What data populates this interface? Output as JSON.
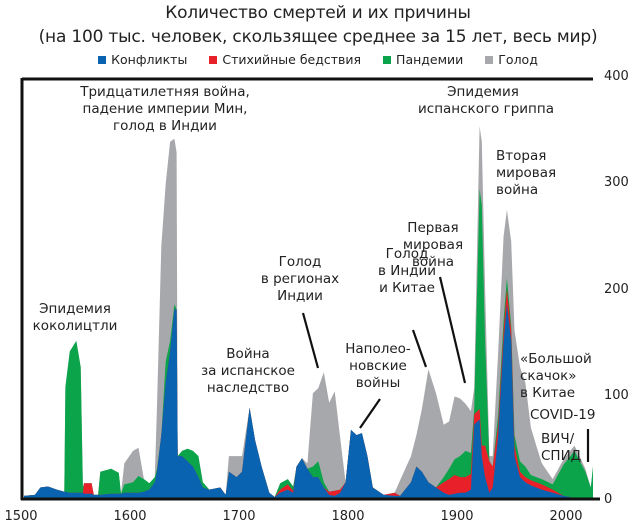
{
  "chart_data": {
    "type": "area",
    "stacked": true,
    "title": "Количество смертей и их причины",
    "subtitle": "(на 100 тыс. человек, скользящее среднее за 15 лет, весь мир)",
    "xlabel": "",
    "ylabel": "",
    "xlim": [
      1500,
      2022
    ],
    "ylim": [
      0,
      400
    ],
    "x_ticks": [
      "1500",
      "1600",
      "1700",
      "1800",
      "1900",
      "2000"
    ],
    "y_ticks": [
      "0",
      "100",
      "200",
      "300",
      "400"
    ],
    "y_axis_side": "right",
    "legend_position": "top",
    "series": [
      {
        "name": "Конфликты",
        "color": "#0a63b0"
      },
      {
        "name": "Стихийные бедствия",
        "color": "#e8202a"
      },
      {
        "name": "Пандемии",
        "color": "#0ba44a"
      },
      {
        "name": "Голод",
        "color": "#a7a8ab"
      }
    ],
    "points_columns": [
      "year",
      "Конфликты",
      "Стихийные бедствия",
      "Пандемии",
      "Голод"
    ],
    "points": [
      [
        1500,
        2,
        0,
        0,
        0
      ],
      [
        1510,
        3,
        0,
        0,
        0
      ],
      [
        1515,
        10,
        0,
        0,
        0
      ],
      [
        1522,
        11,
        0,
        0,
        0
      ],
      [
        1530,
        8,
        0,
        0,
        0
      ],
      [
        1537,
        6,
        0,
        0,
        0
      ],
      [
        1538,
        6,
        0,
        100,
        0
      ],
      [
        1542,
        5,
        0,
        135,
        0
      ],
      [
        1548,
        5,
        0,
        145,
        0
      ],
      [
        1552,
        5,
        0,
        120,
        0
      ],
      [
        1554,
        5,
        0,
        5,
        0
      ],
      [
        1555,
        4,
        10,
        0,
        0
      ],
      [
        1562,
        4,
        10,
        0,
        0
      ],
      [
        1564,
        3,
        0,
        0,
        0
      ],
      [
        1568,
        3,
        0,
        0,
        0
      ],
      [
        1570,
        3,
        0,
        22,
        0
      ],
      [
        1580,
        4,
        0,
        24,
        0
      ],
      [
        1587,
        4,
        0,
        20,
        0
      ],
      [
        1589,
        4,
        0,
        0,
        0
      ],
      [
        1592,
        5,
        0,
        8,
        20
      ],
      [
        1600,
        5,
        0,
        10,
        30
      ],
      [
        1605,
        5,
        0,
        16,
        27
      ],
      [
        1610,
        6,
        0,
        12,
        0
      ],
      [
        1615,
        8,
        0,
        6,
        0
      ],
      [
        1620,
        15,
        0,
        5,
        0
      ],
      [
        1622,
        25,
        0,
        3,
        60
      ],
      [
        1626,
        60,
        0,
        0,
        180
      ],
      [
        1630,
        110,
        0,
        20,
        170
      ],
      [
        1634,
        140,
        0,
        10,
        190
      ],
      [
        1638,
        180,
        0,
        5,
        158
      ],
      [
        1640,
        180,
        0,
        0,
        150
      ],
      [
        1641,
        40,
        0,
        0,
        0
      ],
      [
        1645,
        40,
        0,
        5,
        0
      ],
      [
        1650,
        35,
        0,
        12,
        0
      ],
      [
        1655,
        30,
        0,
        15,
        0
      ],
      [
        1660,
        20,
        0,
        20,
        0
      ],
      [
        1664,
        10,
        0,
        5,
        0
      ],
      [
        1670,
        8,
        0,
        0,
        0
      ],
      [
        1680,
        10,
        0,
        0,
        0
      ],
      [
        1685,
        3,
        0,
        0,
        0
      ],
      [
        1688,
        25,
        0,
        0,
        15
      ],
      [
        1695,
        20,
        0,
        0,
        20
      ],
      [
        1700,
        25,
        0,
        0,
        15
      ],
      [
        1707,
        86,
        0,
        0,
        0
      ],
      [
        1712,
        55,
        0,
        0,
        0
      ],
      [
        1718,
        30,
        0,
        0,
        0
      ],
      [
        1725,
        5,
        0,
        0,
        0
      ],
      [
        1730,
        1,
        0,
        0,
        0
      ],
      [
        1735,
        5,
        3,
        6,
        0
      ],
      [
        1742,
        8,
        5,
        5,
        0
      ],
      [
        1747,
        5,
        2,
        4,
        0
      ],
      [
        1750,
        30,
        0,
        0,
        0
      ],
      [
        1755,
        38,
        0,
        0,
        0
      ],
      [
        1760,
        28,
        0,
        0,
        5
      ],
      [
        1765,
        20,
        0,
        10,
        70
      ],
      [
        1770,
        20,
        0,
        15,
        70
      ],
      [
        1775,
        10,
        0,
        5,
        105
      ],
      [
        1780,
        3,
        3,
        0,
        85
      ],
      [
        1785,
        2,
        5,
        0,
        95
      ],
      [
        1790,
        5,
        3,
        0,
        50
      ],
      [
        1795,
        15,
        0,
        0,
        0
      ],
      [
        1800,
        65,
        0,
        0,
        0
      ],
      [
        1805,
        60,
        0,
        0,
        0
      ],
      [
        1810,
        62,
        0,
        0,
        0
      ],
      [
        1815,
        40,
        0,
        0,
        0
      ],
      [
        1820,
        10,
        0,
        0,
        0
      ],
      [
        1830,
        3,
        0,
        0,
        0
      ],
      [
        1840,
        2,
        3,
        0,
        0
      ],
      [
        1845,
        2,
        0,
        0,
        15
      ],
      [
        1855,
        15,
        0,
        0,
        25
      ],
      [
        1860,
        30,
        0,
        0,
        30
      ],
      [
        1865,
        25,
        0,
        0,
        60
      ],
      [
        1871,
        15,
        0,
        0,
        108
      ],
      [
        1878,
        10,
        0,
        0,
        90
      ],
      [
        1885,
        5,
        10,
        5,
        50
      ],
      [
        1890,
        3,
        15,
        10,
        45
      ],
      [
        1895,
        4,
        18,
        15,
        60
      ],
      [
        1900,
        5,
        15,
        20,
        55
      ],
      [
        1905,
        5,
        15,
        25,
        45
      ],
      [
        1910,
        8,
        15,
        20,
        40
      ],
      [
        1913,
        70,
        10,
        5,
        20
      ],
      [
        1918,
        75,
        10,
        210,
        60
      ],
      [
        1920,
        40,
        10,
        230,
        60
      ],
      [
        1923,
        20,
        30,
        100,
        50
      ],
      [
        1927,
        5,
        30,
        0,
        5
      ],
      [
        1930,
        10,
        20,
        0,
        10
      ],
      [
        1935,
        60,
        10,
        10,
        60
      ],
      [
        1940,
        150,
        10,
        10,
        80
      ],
      [
        1943,
        185,
        15,
        10,
        65
      ],
      [
        1947,
        150,
        10,
        5,
        80
      ],
      [
        1950,
        40,
        10,
        10,
        100
      ],
      [
        1955,
        20,
        5,
        10,
        90
      ],
      [
        1960,
        15,
        5,
        10,
        80
      ],
      [
        1965,
        12,
        5,
        5,
        45
      ],
      [
        1970,
        10,
        5,
        5,
        30
      ],
      [
        1975,
        8,
        5,
        5,
        15
      ],
      [
        1985,
        5,
        3,
        5,
        5
      ],
      [
        1995,
        2,
        0,
        30,
        5
      ],
      [
        2005,
        0,
        0,
        45,
        5
      ],
      [
        2015,
        0,
        0,
        25,
        3
      ],
      [
        2020,
        0,
        0,
        10,
        0
      ],
      [
        2022,
        0,
        0,
        30,
        0
      ]
    ],
    "annotations": {
      "cocoliztli": [
        "Эпидемия",
        "коколицтли"
      ],
      "thirty_years": [
        "Тридцатилетняя война,",
        "падение империи Мин,",
        "голод в Индии"
      ],
      "spanish_succession": [
        "Война",
        "за испанское",
        "наследство"
      ],
      "india_famine": [
        "Голод",
        "в регионах",
        "Индии"
      ],
      "napoleonic": [
        "Наполео-",
        "новские",
        "войны"
      ],
      "india_china_famine": [
        "Голод",
        "в Индии",
        "и Китае"
      ],
      "ww1": [
        "Первая",
        "мировая",
        "война"
      ],
      "spanish_flu": [
        "Эпидемия",
        "испанского гриппа"
      ],
      "ww2": [
        "Вторая",
        "мировая",
        "война"
      ],
      "great_leap": [
        "«Большой",
        "скачок»",
        "в Китае"
      ],
      "covid": [
        "COVID-19"
      ],
      "hiv": [
        "ВИЧ/",
        "СПИД"
      ]
    }
  }
}
